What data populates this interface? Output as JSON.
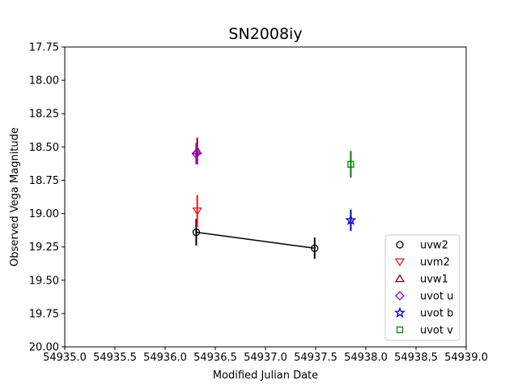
{
  "chart_data": {
    "type": "scatter",
    "title": "SN2008iy",
    "xlabel": "Modified Julian Date",
    "ylabel": "Observed Vega Magnitude",
    "xlim": [
      54935.0,
      54939.0
    ],
    "ylim": [
      17.75,
      20.0
    ],
    "y_inverted": true,
    "grid": false,
    "legend_position": "lower-right",
    "x_ticks": [
      "54935.0",
      "54935.5",
      "54936.0",
      "54936.5",
      "54937.0",
      "54937.5",
      "54938.0",
      "54938.5",
      "54939.0"
    ],
    "y_ticks": [
      "17.75",
      "18.00",
      "18.25",
      "18.50",
      "18.75",
      "19.00",
      "19.25",
      "19.50",
      "19.75",
      "20.00"
    ],
    "series": [
      {
        "name": "uvw2",
        "color": "#000000",
        "marker": "circle",
        "line": true,
        "points": [
          {
            "x": 54936.31,
            "y": 19.14,
            "err": 0.1
          },
          {
            "x": 54937.49,
            "y": 19.26,
            "err": 0.08
          }
        ]
      },
      {
        "name": "uvm2",
        "color": "#e41a1c",
        "marker": "triangle-down",
        "line": false,
        "points": [
          {
            "x": 54936.32,
            "y": 18.98,
            "err": 0.12
          }
        ]
      },
      {
        "name": "uvw1",
        "color": "#800020",
        "marker": "triangle-up",
        "line": false,
        "points": [
          {
            "x": 54936.32,
            "y": 18.53,
            "err": 0.1
          }
        ]
      },
      {
        "name": "uvot u",
        "color": "#9400d3",
        "marker": "diamond",
        "line": false,
        "points": [
          {
            "x": 54936.31,
            "y": 18.55,
            "err": 0.08
          }
        ]
      },
      {
        "name": "uvot b",
        "color": "#0000cc",
        "marker": "star",
        "line": false,
        "points": [
          {
            "x": 54937.85,
            "y": 19.05,
            "err": 0.08
          }
        ]
      },
      {
        "name": "uvot v",
        "color": "#008000",
        "marker": "square",
        "line": false,
        "points": [
          {
            "x": 54937.85,
            "y": 18.63,
            "err": 0.1
          }
        ]
      }
    ]
  }
}
